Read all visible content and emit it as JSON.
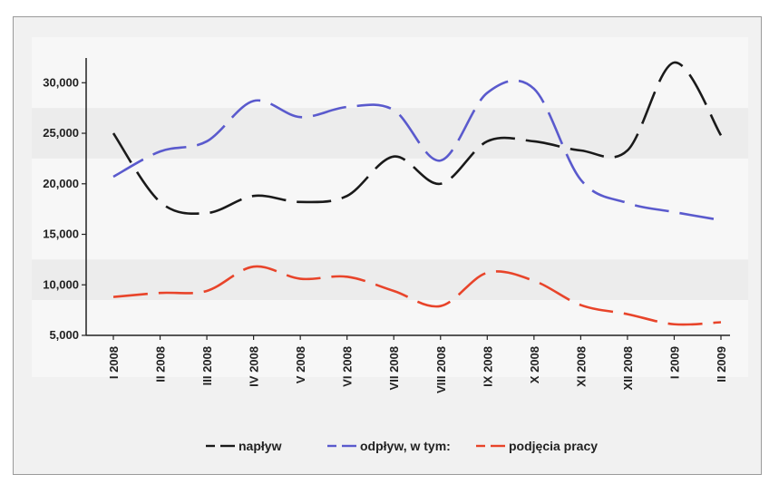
{
  "chart_data": {
    "type": "line",
    "title": "",
    "xlabel": "",
    "ylabel": "",
    "ylim": [
      5000,
      32000
    ],
    "yticks": [
      5000,
      10000,
      15000,
      20000,
      25000,
      30000
    ],
    "ytick_labels": [
      "5,000",
      "10,000",
      "15,000",
      "20,000",
      "25,000",
      "30,000"
    ],
    "categories": [
      "I 2008",
      "II 2008",
      "III 2008",
      "IV 2008",
      "V 2008",
      "VI 2008",
      "VII 2008",
      "VIII 2008",
      "IX 2008",
      "X 2008",
      "XI 2008",
      "XII 2008",
      "I 2009",
      "II 2009"
    ],
    "legend_position": "bottom",
    "series": [
      {
        "name": "napływ",
        "color": "#1a1a1a",
        "dash": "long-dash",
        "values": [
          25000,
          18200,
          17100,
          18800,
          18200,
          18800,
          22700,
          20000,
          24200,
          24200,
          23300,
          23300,
          32000,
          24800
        ]
      },
      {
        "name": "odpływ, w tym:",
        "color": "#5a5acd",
        "dash": "long-dash",
        "values": [
          20700,
          23200,
          24200,
          28200,
          26600,
          27600,
          27300,
          22300,
          29000,
          29400,
          20400,
          18100,
          17200,
          16400
        ]
      },
      {
        "name": "podjęcia pracy",
        "color": "#e8442a",
        "dash": "long-dash",
        "values": [
          8800,
          9200,
          9400,
          11800,
          10600,
          10800,
          9400,
          7900,
          11200,
          10400,
          8000,
          7100,
          6100,
          6300
        ]
      }
    ]
  }
}
